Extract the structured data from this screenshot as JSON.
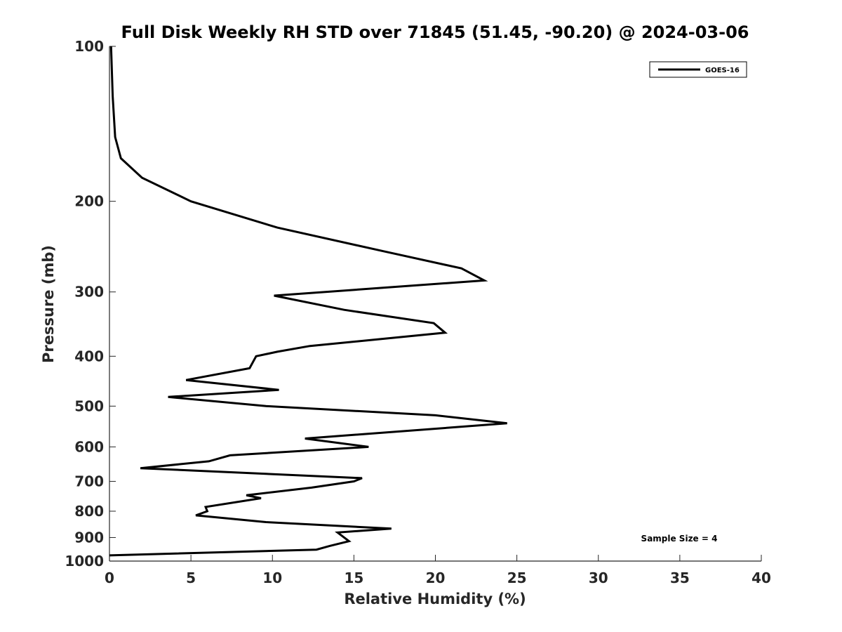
{
  "chart_data": {
    "type": "line",
    "title": "Full Disk Weekly RH STD over 71845 (51.45, -90.20) @ 2024-03-06",
    "xlabel": "Relative Humidity (%)",
    "ylabel": "Pressure (mb)",
    "xlim": [
      0,
      40
    ],
    "ylim": [
      100,
      1000
    ],
    "y_scale": "log",
    "y_reversed": true,
    "grid": false,
    "legend_position": "top-right",
    "x_ticks": [
      "0",
      "5",
      "10",
      "15",
      "20",
      "25",
      "30",
      "35",
      "40"
    ],
    "y_ticks": [
      "100",
      "200",
      "300",
      "400",
      "500",
      "600",
      "700",
      "800",
      "900",
      "1000"
    ],
    "annotation": "Sample Size = 4",
    "series": [
      {
        "name": "GOES-16",
        "color": "#000000",
        "points": [
          [
            0.1,
            100
          ],
          [
            0.2,
            125
          ],
          [
            0.35,
            150
          ],
          [
            0.7,
            165
          ],
          [
            2.0,
            180
          ],
          [
            5.0,
            200
          ],
          [
            10.3,
            225
          ],
          [
            16.8,
            250
          ],
          [
            21.6,
            270
          ],
          [
            23.0,
            285
          ],
          [
            10.1,
            305
          ],
          [
            14.4,
            325
          ],
          [
            19.9,
            345
          ],
          [
            20.6,
            360
          ],
          [
            12.3,
            382
          ],
          [
            10.3,
            392
          ],
          [
            9.0,
            400
          ],
          [
            8.6,
            422
          ],
          [
            4.7,
            445
          ],
          [
            10.4,
            465
          ],
          [
            3.6,
            480
          ],
          [
            9.6,
            500
          ],
          [
            20.0,
            521
          ],
          [
            24.4,
            540
          ],
          [
            12.0,
            578
          ],
          [
            15.9,
            600
          ],
          [
            7.4,
            623
          ],
          [
            6.1,
            640
          ],
          [
            1.9,
            660
          ],
          [
            15.5,
            690
          ],
          [
            15.0,
            700
          ],
          [
            12.4,
            720
          ],
          [
            8.4,
            745
          ],
          [
            9.3,
            755
          ],
          [
            5.9,
            785
          ],
          [
            6.0,
            800
          ],
          [
            5.3,
            815
          ],
          [
            9.6,
            840
          ],
          [
            17.3,
            865
          ],
          [
            14.0,
            880
          ],
          [
            14.7,
            915
          ],
          [
            13.5,
            935
          ],
          [
            12.7,
            950
          ],
          [
            0.0,
            975
          ]
        ]
      }
    ]
  }
}
